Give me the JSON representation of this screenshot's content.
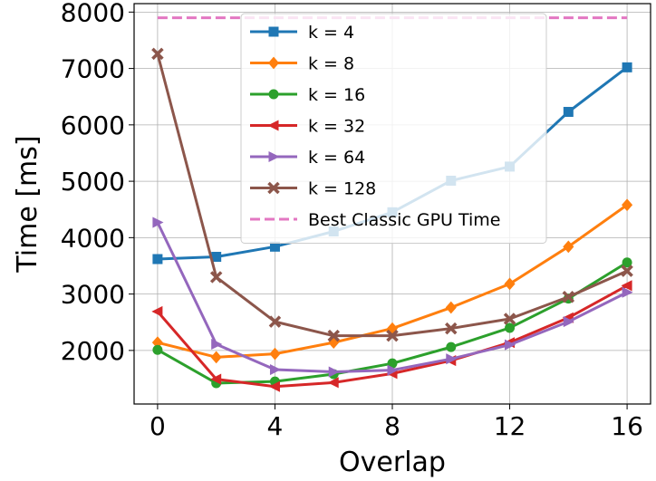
{
  "chart_data": {
    "type": "line",
    "xlabel": "Overlap",
    "ylabel": "Time [ms]",
    "xlim": [
      -0.8,
      16.8
    ],
    "ylim": [
      1050,
      8150
    ],
    "xticks": [
      0,
      4,
      8,
      12,
      16
    ],
    "yticks": [
      2000,
      3000,
      4000,
      5000,
      6000,
      7000,
      8000
    ],
    "grid": true,
    "legend_position": "top-center",
    "x": [
      0,
      2,
      4,
      6,
      8,
      10,
      12,
      14,
      16
    ],
    "series": [
      {
        "name": "k = 4",
        "color": "#1f77b4",
        "marker": "square",
        "values": [
          3620,
          3660,
          3840,
          4110,
          4450,
          5010,
          5260,
          6230,
          7020
        ]
      },
      {
        "name": "k = 8",
        "color": "#ff7f0e",
        "marker": "diamond",
        "values": [
          2140,
          1880,
          1940,
          2140,
          2390,
          2760,
          3180,
          3840,
          4580
        ]
      },
      {
        "name": "k = 16",
        "color": "#2ca02c",
        "marker": "circle",
        "values": [
          2010,
          1420,
          1450,
          1580,
          1770,
          2060,
          2400,
          2920,
          3560
        ]
      },
      {
        "name": "k = 32",
        "color": "#d62728",
        "marker": "triangle-left",
        "values": [
          2690,
          1490,
          1360,
          1430,
          1590,
          1820,
          2140,
          2580,
          3150
        ]
      },
      {
        "name": "k = 64",
        "color": "#9467bd",
        "marker": "triangle-right",
        "values": [
          4270,
          2110,
          1660,
          1620,
          1650,
          1850,
          2100,
          2510,
          3030
        ]
      },
      {
        "name": "k = 128",
        "color": "#8c564b",
        "marker": "x",
        "values": [
          7260,
          3300,
          2510,
          2260,
          2260,
          2390,
          2560,
          2950,
          3410
        ]
      }
    ],
    "reference_line": {
      "name": "Best Classic GPU Time",
      "color": "#e377c2",
      "style": "dashed",
      "value": 7900
    }
  }
}
